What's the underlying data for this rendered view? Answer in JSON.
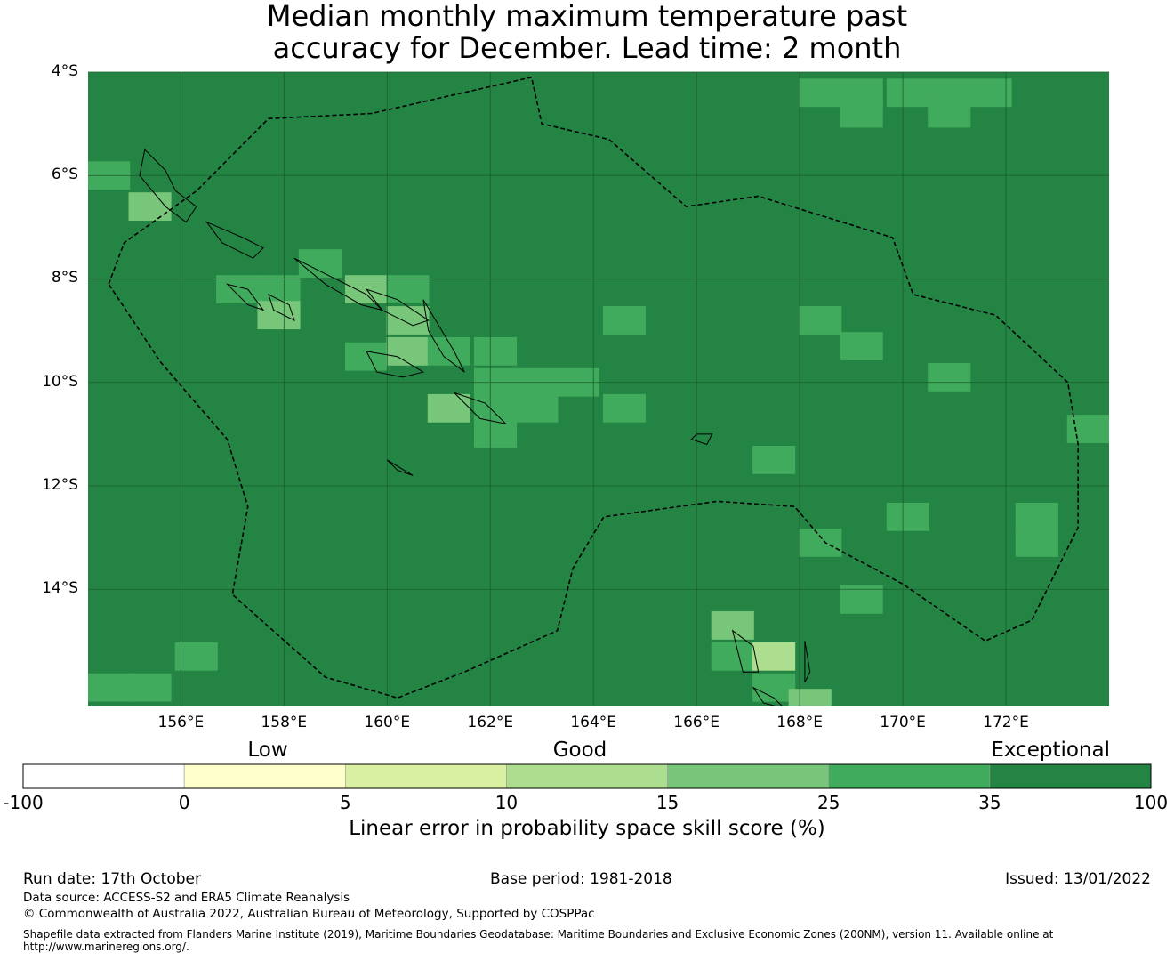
{
  "title_line1": "Median monthly maximum temperature past",
  "title_line2": "accuracy for December. Lead time: 2 month",
  "map": {
    "lon_range": [
      154.2,
      174.0
    ],
    "lat_range": [
      -16.25,
      -4.0
    ],
    "lat_ticks": [
      "4°S",
      "6°S",
      "8°S",
      "10°S",
      "12°S",
      "14°S"
    ],
    "lon_ticks": [
      "156°E",
      "158°E",
      "160°E",
      "162°E",
      "164°E",
      "166°E",
      "168°E",
      "170°E",
      "172°E"
    ],
    "gridlines": true,
    "background_category": "35-100",
    "cell_size_deg": 0.83,
    "cells": [
      {
        "lon": 168.4,
        "lat": -4.4,
        "skill": "25-35"
      },
      {
        "lon": 169.2,
        "lat": -4.4,
        "skill": "25-35"
      },
      {
        "lon": 170.1,
        "lat": -4.4,
        "skill": "25-35"
      },
      {
        "lon": 170.9,
        "lat": -4.4,
        "skill": "25-35"
      },
      {
        "lon": 171.7,
        "lat": -4.4,
        "skill": "25-35"
      },
      {
        "lon": 169.2,
        "lat": -4.8,
        "skill": "25-35"
      },
      {
        "lon": 170.9,
        "lat": -4.8,
        "skill": "25-35"
      },
      {
        "lon": 154.6,
        "lat": -6.0,
        "skill": "25-35"
      },
      {
        "lon": 155.4,
        "lat": -6.6,
        "skill": "15-25"
      },
      {
        "lon": 158.7,
        "lat": -7.7,
        "skill": "25-35"
      },
      {
        "lon": 157.1,
        "lat": -8.2,
        "skill": "25-35"
      },
      {
        "lon": 157.9,
        "lat": -8.2,
        "skill": "25-35"
      },
      {
        "lon": 157.9,
        "lat": -8.7,
        "skill": "15-25"
      },
      {
        "lon": 159.6,
        "lat": -8.2,
        "skill": "15-25"
      },
      {
        "lon": 160.4,
        "lat": -8.2,
        "skill": "25-35"
      },
      {
        "lon": 160.4,
        "lat": -8.8,
        "skill": "15-25"
      },
      {
        "lon": 159.6,
        "lat": -9.5,
        "skill": "25-35"
      },
      {
        "lon": 160.4,
        "lat": -9.4,
        "skill": "15-25"
      },
      {
        "lon": 161.2,
        "lat": -9.4,
        "skill": "25-35"
      },
      {
        "lon": 162.1,
        "lat": -9.4,
        "skill": "25-35"
      },
      {
        "lon": 162.1,
        "lat": -10.0,
        "skill": "25-35"
      },
      {
        "lon": 162.9,
        "lat": -10.0,
        "skill": "25-35"
      },
      {
        "lon": 163.7,
        "lat": -10.0,
        "skill": "25-35"
      },
      {
        "lon": 161.2,
        "lat": -10.5,
        "skill": "15-25"
      },
      {
        "lon": 162.1,
        "lat": -10.5,
        "skill": "25-35"
      },
      {
        "lon": 162.9,
        "lat": -10.5,
        "skill": "25-35"
      },
      {
        "lon": 162.1,
        "lat": -11.0,
        "skill": "25-35"
      },
      {
        "lon": 164.6,
        "lat": -8.8,
        "skill": "25-35"
      },
      {
        "lon": 164.6,
        "lat": -10.5,
        "skill": "25-35"
      },
      {
        "lon": 168.4,
        "lat": -8.8,
        "skill": "25-35"
      },
      {
        "lon": 169.2,
        "lat": -9.3,
        "skill": "25-35"
      },
      {
        "lon": 170.9,
        "lat": -9.9,
        "skill": "25-35"
      },
      {
        "lon": 173.6,
        "lat": -10.9,
        "skill": "25-35"
      },
      {
        "lon": 167.5,
        "lat": -11.5,
        "skill": "25-35"
      },
      {
        "lon": 170.1,
        "lat": -12.6,
        "skill": "25-35"
      },
      {
        "lon": 172.6,
        "lat": -12.6,
        "skill": "25-35"
      },
      {
        "lon": 172.6,
        "lat": -13.1,
        "skill": "25-35"
      },
      {
        "lon": 168.4,
        "lat": -13.1,
        "skill": "25-35"
      },
      {
        "lon": 169.2,
        "lat": -14.2,
        "skill": "25-35"
      },
      {
        "lon": 166.7,
        "lat": -14.7,
        "skill": "15-25"
      },
      {
        "lon": 166.7,
        "lat": -15.3,
        "skill": "25-35"
      },
      {
        "lon": 167.5,
        "lat": -15.3,
        "skill": "10-15"
      },
      {
        "lon": 167.5,
        "lat": -15.9,
        "skill": "25-35"
      },
      {
        "lon": 168.2,
        "lat": -16.2,
        "skill": "15-25"
      },
      {
        "lon": 156.3,
        "lat": -15.3,
        "skill": "25-35"
      },
      {
        "lon": 154.6,
        "lat": -15.9,
        "skill": "25-35"
      },
      {
        "lon": 155.4,
        "lat": -15.9,
        "skill": "25-35"
      }
    ]
  },
  "colorbar": {
    "title": "Linear error in probability space skill score (%)",
    "ticks": [
      "-100",
      "0",
      "5",
      "10",
      "15",
      "25",
      "35",
      "100"
    ],
    "bins": [
      {
        "range": "-100-0",
        "color": "#ffffff"
      },
      {
        "range": "0-5",
        "color": "#ffffcc"
      },
      {
        "range": "5-10",
        "color": "#d9f0a3"
      },
      {
        "range": "10-15",
        "color": "#addd8e"
      },
      {
        "range": "15-25",
        "color": "#78c679"
      },
      {
        "range": "25-35",
        "color": "#41ab5d"
      },
      {
        "range": "35-100",
        "color": "#238443"
      }
    ],
    "categories": [
      "Low",
      "Good",
      "Exceptional"
    ]
  },
  "footer": {
    "run_date": "Run date: 17th October",
    "base_period": "Base period: 1981-2018",
    "issued": "Issued: 13/01/2022",
    "data_source": "Data source: ACCESS-S2 and ERA5 Climate Reanalysis",
    "copyright": "© Commonwealth of Australia 2022, Australian Bureau of Meteorology, Supported by COSPPac",
    "shapefile": "Shapefile data extracted from Flanders Marine Institute (2019), Maritime Boundaries Geodatabase: Maritime Boundaries and Exclusive Economic Zones (200NM), version 11. Available online at http://www.marineregions.org/."
  }
}
